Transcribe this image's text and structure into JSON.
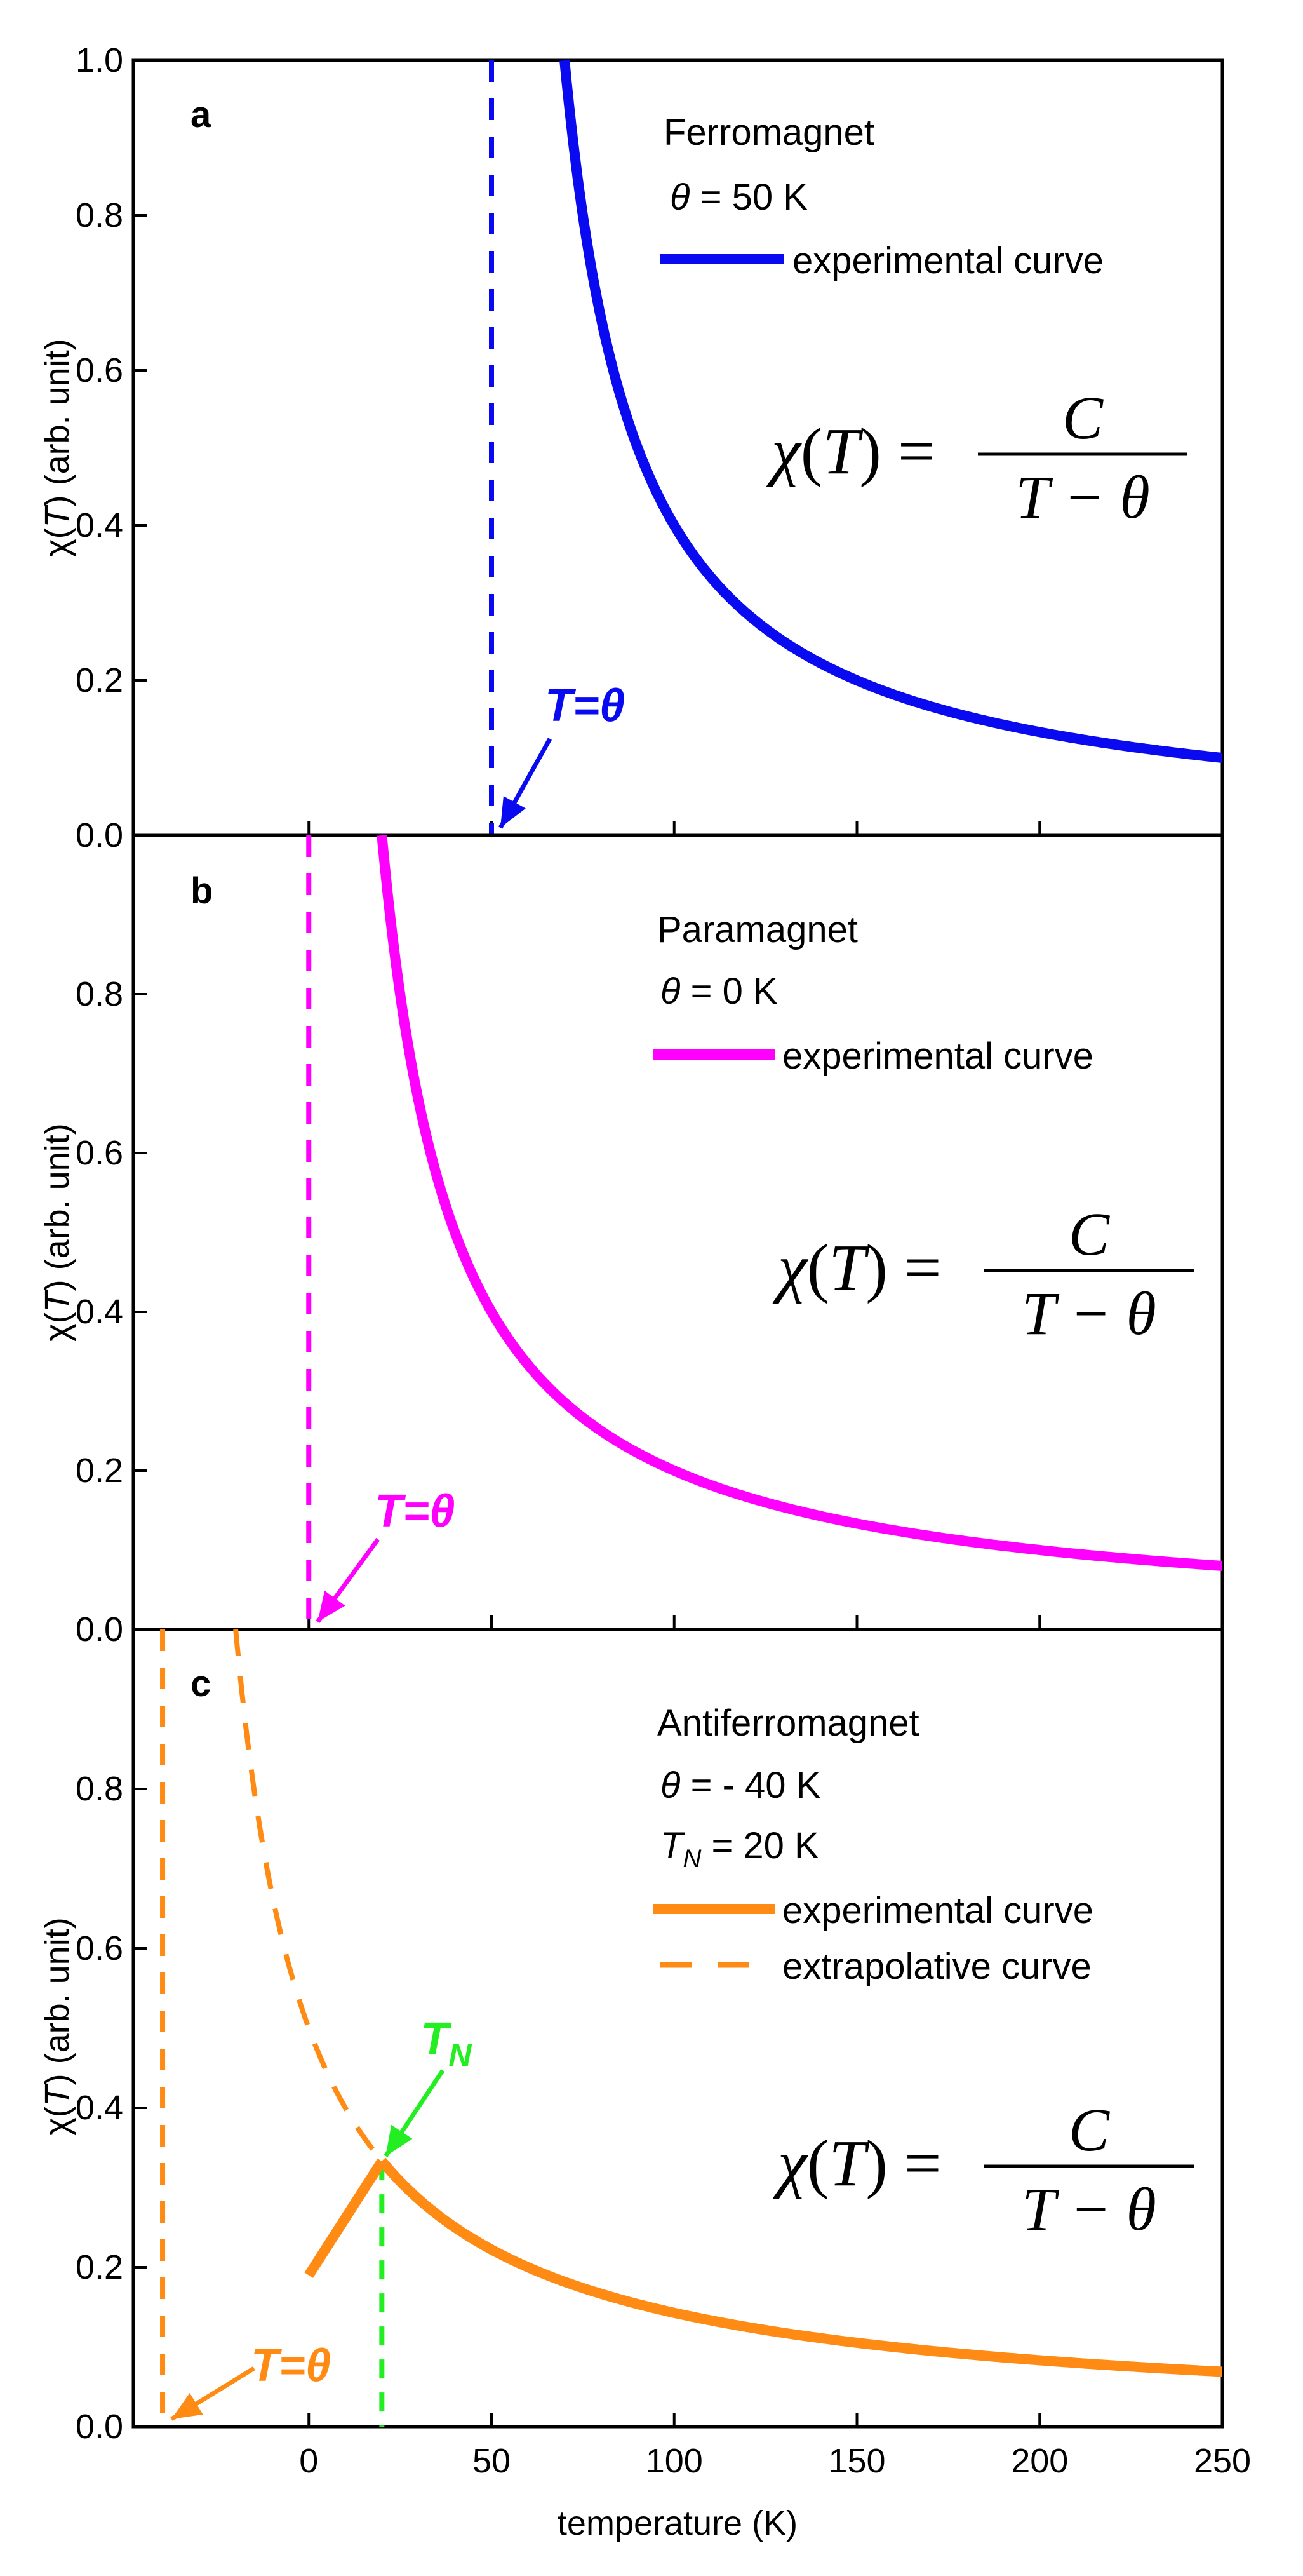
{
  "colors": {
    "ferro": "#0a0af0",
    "para": "#ff00ff",
    "antiferro": "#ff8a14",
    "tn_marker": "#22ee22",
    "frame": "#000000"
  },
  "chart_data": [
    {
      "type": "line",
      "panel": "a",
      "panel_label": "a",
      "x_range": [
        -48,
        250
      ],
      "y_range": [
        0,
        1
      ],
      "x_ticks": [
        0,
        50,
        100,
        150,
        200,
        250
      ],
      "y_ticks": [
        0.0,
        0.2,
        0.4,
        0.6,
        0.8,
        1.0
      ],
      "y_tick_labels": [
        "0.0",
        "0.2",
        "0.4",
        "0.6",
        "0.8",
        "1.0"
      ],
      "ylabel_prefix": "χ(",
      "ylabel_italic": "T",
      "ylabel_suffix": ") (arb. unit)",
      "legend": {
        "title": "Ferromagnet",
        "theta_symbol": "θ",
        "theta_text": " = 50 K",
        "entries": [
          {
            "style": "solid",
            "label": "experimental curve"
          }
        ]
      },
      "series": [
        {
          "name": "experimental curve",
          "style": "solid",
          "formula": "C/(T-theta)",
          "C": 20,
          "theta": 50,
          "x_start": 70,
          "x_end": 250
        }
      ],
      "vline": {
        "x": 50,
        "style": "dashed"
      },
      "annotation": {
        "text": "T=θ",
        "target": [
          50,
          0.0
        ]
      },
      "formula": {
        "lhs": "χ(T) =",
        "numerator": "C",
        "denominator": "T − θ"
      }
    },
    {
      "type": "line",
      "panel": "b",
      "panel_label": "b",
      "x_range": [
        -48,
        250
      ],
      "y_range": [
        0,
        1
      ],
      "x_ticks": [
        0,
        50,
        100,
        150,
        200,
        250
      ],
      "y_ticks": [
        0.0,
        0.2,
        0.4,
        0.6,
        0.8
      ],
      "y_tick_labels": [
        "0.0",
        "0.2",
        "0.4",
        "0.6",
        "0.8"
      ],
      "ylabel_prefix": "χ(",
      "ylabel_italic": "T",
      "ylabel_suffix": ") (arb. unit)",
      "legend": {
        "title": "Paramagnet",
        "theta_symbol": "θ",
        "theta_text": " = 0 K",
        "entries": [
          {
            "style": "solid",
            "label": "experimental curve"
          }
        ]
      },
      "series": [
        {
          "name": "experimental curve",
          "style": "solid",
          "formula": "C/(T-theta)",
          "C": 20,
          "theta": 0,
          "x_start": 20,
          "x_end": 250
        }
      ],
      "vline": {
        "x": 0,
        "style": "dashed"
      },
      "annotation": {
        "text": "T=θ",
        "target": [
          0,
          0.0
        ]
      },
      "formula": {
        "lhs": "χ(T) =",
        "numerator": "C",
        "denominator": "T − θ"
      }
    },
    {
      "type": "line",
      "panel": "c",
      "panel_label": "c",
      "x_range": [
        -48,
        250
      ],
      "y_range": [
        0,
        1
      ],
      "x_ticks": [
        0,
        50,
        100,
        150,
        200,
        250
      ],
      "x_tick_labels": [
        "0",
        "50",
        "100",
        "150",
        "200",
        "250"
      ],
      "y_ticks": [
        0.0,
        0.2,
        0.4,
        0.6,
        0.8
      ],
      "y_tick_labels": [
        "0.0",
        "0.2",
        "0.4",
        "0.6",
        "0.8"
      ],
      "xlabel": "temperature (K)",
      "ylabel_prefix": "χ(",
      "ylabel_italic": "T",
      "ylabel_suffix": ") (arb. unit)",
      "legend": {
        "title": "Antiferromagnet",
        "theta_symbol": "θ",
        "theta_text": " = - 40 K",
        "tn_symbol": "T",
        "tn_sub": "N",
        "tn_text": " = 20 K",
        "entries": [
          {
            "style": "solid",
            "label": "experimental curve"
          },
          {
            "style": "dashed",
            "label": "extrapolative curve"
          }
        ]
      },
      "series": [
        {
          "name": "experimental curve",
          "style": "solid",
          "formula": "C/(T-theta)",
          "C": 20,
          "theta": -40,
          "x_start": 20,
          "x_end": 250
        },
        {
          "name": "experimental curve (below TN)",
          "style": "solid",
          "points": [
            [
              0,
              0.19
            ],
            [
              20,
              0.333
            ]
          ]
        },
        {
          "name": "extrapolative curve",
          "style": "dashed",
          "formula": "C/(T-theta)",
          "C": 20,
          "theta": -40,
          "x_start": -20,
          "x_end": 20
        }
      ],
      "vline": {
        "x": -40,
        "style": "dashed"
      },
      "tn_line": {
        "x": 20,
        "y_top": 0.333,
        "style": "dashed"
      },
      "annotation": {
        "text": "T=θ",
        "target": [
          -40,
          0.0
        ]
      },
      "tn_annotation": {
        "text": "T",
        "sub": "N",
        "target": [
          20,
          0.333
        ]
      },
      "formula": {
        "lhs": "χ(T) =",
        "numerator": "C",
        "denominator": "T − θ"
      }
    }
  ]
}
